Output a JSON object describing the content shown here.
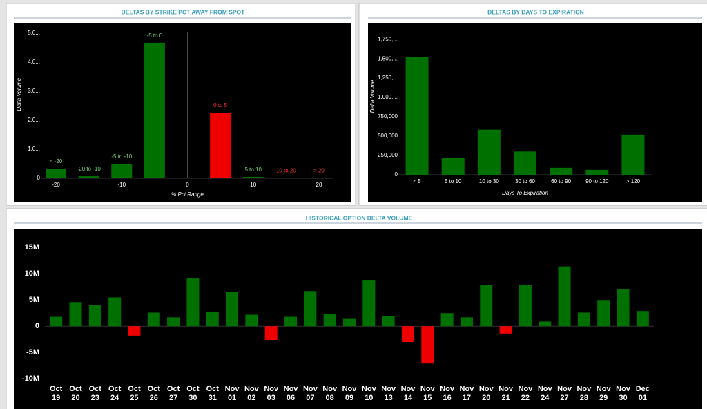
{
  "chart_data": [
    {
      "type": "bar",
      "title": "DELTAS BY STRIKE PCT AWAY FROM SPOT",
      "xlabel": "% Pct Range",
      "ylabel": "Delta Volume",
      "categories": [
        "< -20",
        "-20 to -10",
        "-5 to -10",
        "-5 to 0",
        "0 to 5",
        "5 to 10",
        "10 to 20",
        "> 20"
      ],
      "x": [
        -20,
        -15,
        -10,
        -5,
        5,
        10,
        15,
        20
      ],
      "values": [
        330000,
        70000,
        500000,
        4670000,
        2260000,
        50000,
        20000,
        20000
      ],
      "colors": [
        "#007000",
        "#007000",
        "#007000",
        "#007000",
        "#ee0000",
        "#007000",
        "#ee0000",
        "#ee0000"
      ],
      "xlim": [
        -22,
        22
      ],
      "xticks": [
        -20,
        -10,
        0,
        10,
        20
      ],
      "ylim": [
        0,
        5300000
      ],
      "yticks": [
        0,
        {
          "value": 1000000,
          "label": "1,0..."
        },
        {
          "value": 2000000,
          "label": "2,0..."
        },
        {
          "value": 3000000,
          "label": "3,0..."
        },
        {
          "value": 4000000,
          "label": "4,0..."
        },
        {
          "value": 5000000,
          "label": "5,0..."
        }
      ]
    },
    {
      "type": "bar",
      "title": "DELTAS BY DAYS TO EXPIRATION",
      "xlabel": "Days To Expiration",
      "ylabel": "Delta Volume",
      "categories": [
        "< 5",
        "5 to 10",
        "10 to 30",
        "30 to 60",
        "60 to 90",
        "90 to 120",
        "> 120"
      ],
      "values": [
        1523000,
        219000,
        584000,
        301000,
        91000,
        64000,
        520000
      ],
      "color": "#007000",
      "ylim": [
        0,
        1850000
      ],
      "yticks": [
        0,
        {
          "value": 250000,
          "label": "250,000"
        },
        {
          "value": 500000,
          "label": "500,000"
        },
        {
          "value": 750000,
          "label": "750,000"
        },
        {
          "value": 1000000,
          "label": "1,000,..."
        },
        {
          "value": 1250000,
          "label": "1,250,..."
        },
        {
          "value": 1500000,
          "label": "1,500,..."
        },
        {
          "value": 1750000,
          "label": "1,750,..."
        }
      ]
    },
    {
      "type": "bar",
      "title": "HISTORICAL OPTION DELTA VOLUME",
      "categories": [
        "Oct 19",
        "Oct 20",
        "Oct 23",
        "Oct 24",
        "Oct 25",
        "Oct 26",
        "Oct 27",
        "Oct 30",
        "Oct 31",
        "Nov 01",
        "Nov 02",
        "Nov 03",
        "Nov 06",
        "Nov 07",
        "Nov 08",
        "Nov 09",
        "Nov 10",
        "Nov 13",
        "Nov 14",
        "Nov 15",
        "Nov 16",
        "Nov 17",
        "Nov 20",
        "Nov 21",
        "Nov 22",
        "Nov 24",
        "Nov 27",
        "Nov 28",
        "Nov 29",
        "Nov 30",
        "Dec 01"
      ],
      "values": [
        1800000,
        4600000,
        4100000,
        5500000,
        -1800000,
        2600000,
        1700000,
        9100000,
        2800000,
        6600000,
        2200000,
        -2600000,
        1800000,
        6700000,
        2400000,
        1400000,
        8700000,
        2000000,
        -3000000,
        -7100000,
        2500000,
        1700000,
        7800000,
        -1400000,
        7900000,
        900000,
        11400000,
        2600000,
        5000000,
        7100000,
        2900000
      ],
      "positive_color": "#007000",
      "negative_color": "#ee0000",
      "ylim": [
        -10500000,
        17400000
      ],
      "yticks": [
        {
          "value": -10000000,
          "label": "-10M"
        },
        {
          "value": -5000000,
          "label": "-5M"
        },
        0,
        {
          "value": 5000000,
          "label": "5M"
        },
        {
          "value": 10000000,
          "label": "10M"
        },
        {
          "value": 15000000,
          "label": "15M"
        }
      ]
    }
  ]
}
